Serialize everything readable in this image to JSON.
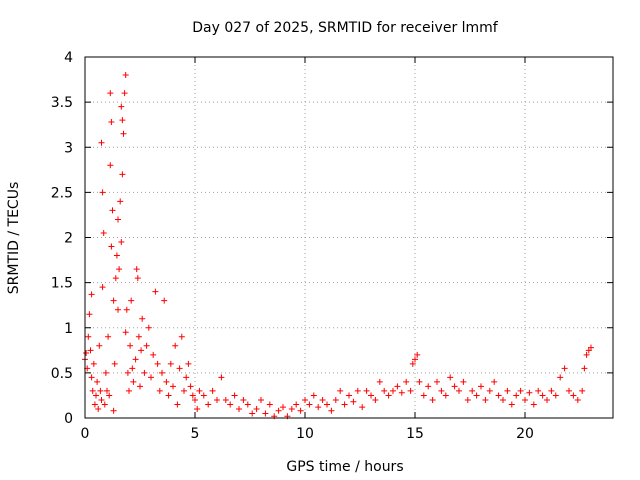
{
  "chart_data": {
    "type": "scatter",
    "title": "Day 027 of 2025, SRMTID for receiver lmmf",
    "xlabel": "GPS time / hours",
    "ylabel": "SRMTID / TECUs",
    "xlim": [
      0,
      24
    ],
    "ylim": [
      0,
      4
    ],
    "grid": true,
    "marker": "+",
    "x_ticks": [
      0,
      5,
      10,
      15,
      20
    ],
    "x_tick_labels": [
      "0",
      "5",
      "10",
      "15",
      "20"
    ],
    "y_ticks": [
      0,
      0.5,
      1,
      1.5,
      2,
      2.5,
      3,
      3.5,
      4
    ],
    "y_tick_labels": [
      "0",
      "0.5",
      "1",
      "1.5",
      "2",
      "2.5",
      "3",
      "3.5",
      "4"
    ],
    "colors": {
      "points": "#ff0000",
      "grid": "#a0a0a0",
      "axis": "#000000"
    },
    "series": [
      {
        "name": "SRMTID",
        "points": [
          [
            0.0,
            0.65
          ],
          [
            0.05,
            0.72
          ],
          [
            0.1,
            0.55
          ],
          [
            0.15,
            0.9
          ],
          [
            0.2,
            1.15
          ],
          [
            0.25,
            0.75
          ],
          [
            0.3,
            1.37
          ],
          [
            0.3,
            0.45
          ],
          [
            0.35,
            0.3
          ],
          [
            0.4,
            0.6
          ],
          [
            0.45,
            0.15
          ],
          [
            0.5,
            0.25
          ],
          [
            0.55,
            0.4
          ],
          [
            0.6,
            0.1
          ],
          [
            0.65,
            0.8
          ],
          [
            0.7,
            0.3
          ],
          [
            0.75,
            3.05
          ],
          [
            0.75,
            0.2
          ],
          [
            0.8,
            2.5
          ],
          [
            0.8,
            1.45
          ],
          [
            0.85,
            2.05
          ],
          [
            0.9,
            0.15
          ],
          [
            0.95,
            0.5
          ],
          [
            1.0,
            0.3
          ],
          [
            1.05,
            0.9
          ],
          [
            1.1,
            0.25
          ],
          [
            1.15,
            3.6
          ],
          [
            1.15,
            2.8
          ],
          [
            1.2,
            1.9
          ],
          [
            1.2,
            3.28
          ],
          [
            1.25,
            2.3
          ],
          [
            1.3,
            1.3
          ],
          [
            1.3,
            0.08
          ],
          [
            1.35,
            0.6
          ],
          [
            1.4,
            1.55
          ],
          [
            1.45,
            1.8
          ],
          [
            1.5,
            2.2
          ],
          [
            1.5,
            1.2
          ],
          [
            1.55,
            1.65
          ],
          [
            1.6,
            2.4
          ],
          [
            1.65,
            3.45
          ],
          [
            1.65,
            1.95
          ],
          [
            1.7,
            3.3
          ],
          [
            1.7,
            2.7
          ],
          [
            1.75,
            3.15
          ],
          [
            1.8,
            3.6
          ],
          [
            1.85,
            3.8
          ],
          [
            1.85,
            0.95
          ],
          [
            1.9,
            1.2
          ],
          [
            1.95,
            0.5
          ],
          [
            2.0,
            0.3
          ],
          [
            2.05,
            0.8
          ],
          [
            2.1,
            1.3
          ],
          [
            2.15,
            0.55
          ],
          [
            2.2,
            0.4
          ],
          [
            2.3,
            0.65
          ],
          [
            2.35,
            1.65
          ],
          [
            2.4,
            1.55
          ],
          [
            2.45,
            0.9
          ],
          [
            2.5,
            0.35
          ],
          [
            2.55,
            0.75
          ],
          [
            2.6,
            1.1
          ],
          [
            2.7,
            0.5
          ],
          [
            2.8,
            0.8
          ],
          [
            2.9,
            1.0
          ],
          [
            3.0,
            0.45
          ],
          [
            3.1,
            0.7
          ],
          [
            3.2,
            1.4
          ],
          [
            3.3,
            0.6
          ],
          [
            3.4,
            0.3
          ],
          [
            3.5,
            0.5
          ],
          [
            3.6,
            1.3
          ],
          [
            3.7,
            0.4
          ],
          [
            3.8,
            0.25
          ],
          [
            3.9,
            0.6
          ],
          [
            4.0,
            0.35
          ],
          [
            4.1,
            0.8
          ],
          [
            4.2,
            0.15
          ],
          [
            4.3,
            0.55
          ],
          [
            4.4,
            0.9
          ],
          [
            4.5,
            0.3
          ],
          [
            4.6,
            0.45
          ],
          [
            4.7,
            0.6
          ],
          [
            4.8,
            0.35
          ],
          [
            4.9,
            0.25
          ],
          [
            5.0,
            0.2
          ],
          [
            5.1,
            0.1
          ],
          [
            5.2,
            0.3
          ],
          [
            5.4,
            0.25
          ],
          [
            5.6,
            0.15
          ],
          [
            5.8,
            0.3
          ],
          [
            6.0,
            0.2
          ],
          [
            6.2,
            0.45
          ],
          [
            6.4,
            0.2
          ],
          [
            6.6,
            0.15
          ],
          [
            6.8,
            0.25
          ],
          [
            7.0,
            0.1
          ],
          [
            7.2,
            0.2
          ],
          [
            7.4,
            0.15
          ],
          [
            7.6,
            0.05
          ],
          [
            7.8,
            0.1
          ],
          [
            8.0,
            0.2
          ],
          [
            8.2,
            0.05
          ],
          [
            8.4,
            0.15
          ],
          [
            8.6,
            0.02
          ],
          [
            8.8,
            0.08
          ],
          [
            9.0,
            0.12
          ],
          [
            9.2,
            0.02
          ],
          [
            9.4,
            0.1
          ],
          [
            9.6,
            0.15
          ],
          [
            9.8,
            0.08
          ],
          [
            10.0,
            0.2
          ],
          [
            10.2,
            0.15
          ],
          [
            10.4,
            0.25
          ],
          [
            10.6,
            0.12
          ],
          [
            10.8,
            0.2
          ],
          [
            11.0,
            0.15
          ],
          [
            11.2,
            0.08
          ],
          [
            11.4,
            0.2
          ],
          [
            11.6,
            0.3
          ],
          [
            11.8,
            0.15
          ],
          [
            12.0,
            0.25
          ],
          [
            12.2,
            0.18
          ],
          [
            12.4,
            0.3
          ],
          [
            12.6,
            0.12
          ],
          [
            12.8,
            0.3
          ],
          [
            13.0,
            0.25
          ],
          [
            13.2,
            0.2
          ],
          [
            13.4,
            0.4
          ],
          [
            13.6,
            0.3
          ],
          [
            13.8,
            0.25
          ],
          [
            14.0,
            0.3
          ],
          [
            14.2,
            0.35
          ],
          [
            14.4,
            0.28
          ],
          [
            14.6,
            0.4
          ],
          [
            14.8,
            0.3
          ],
          [
            14.9,
            0.6
          ],
          [
            15.0,
            0.65
          ],
          [
            15.1,
            0.7
          ],
          [
            15.2,
            0.4
          ],
          [
            15.4,
            0.25
          ],
          [
            15.6,
            0.35
          ],
          [
            15.8,
            0.2
          ],
          [
            16.0,
            0.4
          ],
          [
            16.2,
            0.3
          ],
          [
            16.4,
            0.25
          ],
          [
            16.6,
            0.45
          ],
          [
            16.8,
            0.35
          ],
          [
            17.0,
            0.3
          ],
          [
            17.2,
            0.4
          ],
          [
            17.4,
            0.2
          ],
          [
            17.6,
            0.3
          ],
          [
            17.8,
            0.25
          ],
          [
            18.0,
            0.35
          ],
          [
            18.2,
            0.2
          ],
          [
            18.4,
            0.3
          ],
          [
            18.6,
            0.4
          ],
          [
            18.8,
            0.25
          ],
          [
            19.0,
            0.2
          ],
          [
            19.2,
            0.3
          ],
          [
            19.4,
            0.15
          ],
          [
            19.6,
            0.25
          ],
          [
            19.8,
            0.3
          ],
          [
            20.0,
            0.2
          ],
          [
            20.2,
            0.28
          ],
          [
            20.4,
            0.15
          ],
          [
            20.6,
            0.3
          ],
          [
            20.8,
            0.25
          ],
          [
            21.0,
            0.2
          ],
          [
            21.2,
            0.3
          ],
          [
            21.4,
            0.25
          ],
          [
            21.6,
            0.45
          ],
          [
            21.8,
            0.55
          ],
          [
            22.0,
            0.3
          ],
          [
            22.2,
            0.25
          ],
          [
            22.4,
            0.2
          ],
          [
            22.6,
            0.3
          ],
          [
            22.7,
            0.55
          ],
          [
            22.8,
            0.7
          ],
          [
            22.9,
            0.75
          ],
          [
            23.0,
            0.78
          ]
        ]
      }
    ]
  }
}
